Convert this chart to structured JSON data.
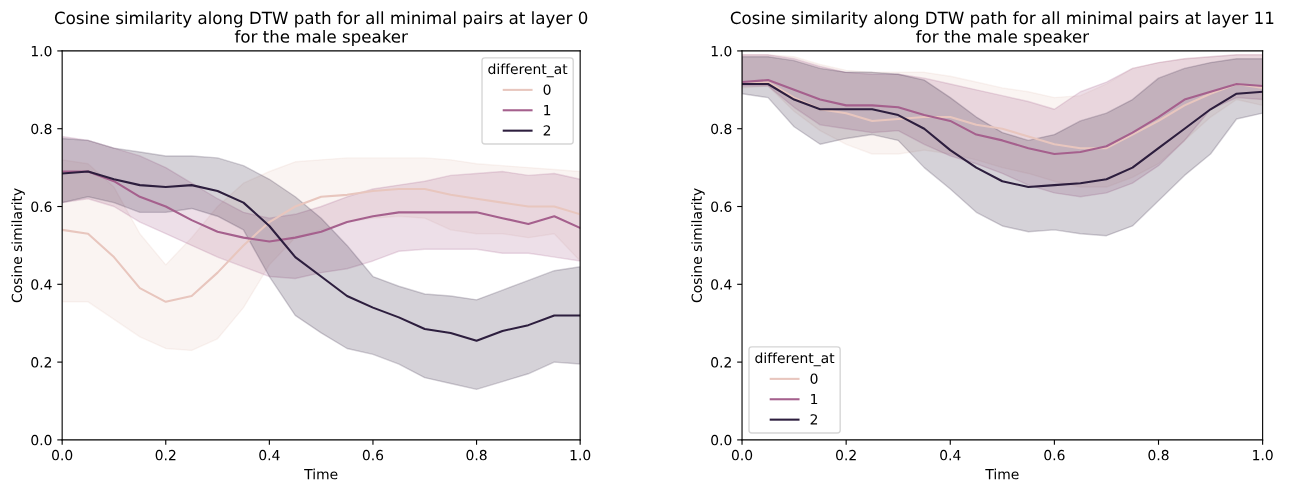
{
  "chart_data": [
    {
      "type": "line",
      "title": "Cosine similarity along DTW path for all minimal pairs at layer 0\nfor the male speaker",
      "xlabel": "Time",
      "ylabel": "Cosine similarity",
      "legend_title": "different_at",
      "legend": "top right",
      "grid": false,
      "x": [
        0,
        0.05,
        0.1,
        0.15,
        0.2,
        0.25,
        0.3,
        0.35,
        0.4,
        0.45,
        0.5,
        0.55,
        0.6,
        0.65,
        0.7,
        0.75,
        0.8,
        0.85,
        0.9,
        0.95,
        1.0
      ],
      "xlim": [
        0,
        1
      ],
      "ylim": [
        0,
        1
      ],
      "xticks": [
        {
          "value": 0,
          "label": "0.0"
        },
        {
          "value": 0.2,
          "label": "0.2"
        },
        {
          "value": 0.4,
          "label": "0.4"
        },
        {
          "value": 0.6,
          "label": "0.6"
        },
        {
          "value": 0.8,
          "label": "0.8"
        },
        {
          "value": 1,
          "label": "1.0"
        }
      ],
      "yticks": [
        {
          "value": 0,
          "label": "0.0"
        },
        {
          "value": 0.2,
          "label": "0.2"
        },
        {
          "value": 0.4,
          "label": "0.4"
        },
        {
          "value": 0.6,
          "label": "0.6"
        },
        {
          "value": 0.8,
          "label": "0.8"
        },
        {
          "value": 1,
          "label": "1.0"
        }
      ],
      "series": [
        {
          "name": "0",
          "color": "#e8c6be",
          "values": [
            0.54,
            0.53,
            0.47,
            0.39,
            0.355,
            0.37,
            0.43,
            0.5,
            0.56,
            0.6,
            0.625,
            0.63,
            0.64,
            0.645,
            0.645,
            0.63,
            0.62,
            0.61,
            0.6,
            0.6,
            0.58
          ],
          "upper": [
            0.72,
            0.71,
            0.65,
            0.53,
            0.45,
            0.52,
            0.6,
            0.66,
            0.69,
            0.715,
            0.72,
            0.725,
            0.725,
            0.725,
            0.725,
            0.72,
            0.71,
            0.705,
            0.7,
            0.695,
            0.69
          ],
          "lower": [
            0.355,
            0.355,
            0.31,
            0.265,
            0.235,
            0.23,
            0.26,
            0.34,
            0.45,
            0.52,
            0.54,
            0.56,
            0.57,
            0.575,
            0.57,
            0.54,
            0.53,
            0.53,
            0.52,
            0.53,
            0.46
          ]
        },
        {
          "name": "1",
          "color": "#a5608d",
          "values": [
            0.69,
            0.69,
            0.665,
            0.625,
            0.6,
            0.565,
            0.535,
            0.52,
            0.51,
            0.52,
            0.535,
            0.56,
            0.575,
            0.585,
            0.585,
            0.585,
            0.585,
            0.57,
            0.555,
            0.575,
            0.545
          ],
          "upper": [
            0.78,
            0.77,
            0.75,
            0.73,
            0.7,
            0.66,
            0.62,
            0.585,
            0.57,
            0.58,
            0.6,
            0.625,
            0.645,
            0.655,
            0.665,
            0.68,
            0.685,
            0.69,
            0.68,
            0.685,
            0.67
          ],
          "lower": [
            0.61,
            0.62,
            0.6,
            0.56,
            0.53,
            0.5,
            0.47,
            0.445,
            0.42,
            0.415,
            0.43,
            0.44,
            0.46,
            0.485,
            0.49,
            0.49,
            0.49,
            0.48,
            0.48,
            0.47,
            0.46
          ]
        },
        {
          "name": "2",
          "color": "#2d1e3e",
          "values": [
            0.685,
            0.69,
            0.67,
            0.655,
            0.65,
            0.655,
            0.64,
            0.61,
            0.55,
            0.47,
            0.42,
            0.37,
            0.34,
            0.315,
            0.285,
            0.275,
            0.255,
            0.28,
            0.295,
            0.32,
            0.32
          ],
          "upper": [
            0.775,
            0.77,
            0.75,
            0.74,
            0.73,
            0.73,
            0.725,
            0.705,
            0.67,
            0.625,
            0.57,
            0.5,
            0.42,
            0.395,
            0.375,
            0.37,
            0.36,
            0.385,
            0.41,
            0.435,
            0.445
          ],
          "lower": [
            0.61,
            0.625,
            0.61,
            0.585,
            0.585,
            0.595,
            0.575,
            0.54,
            0.42,
            0.32,
            0.275,
            0.235,
            0.22,
            0.195,
            0.16,
            0.145,
            0.13,
            0.15,
            0.17,
            0.2,
            0.195
          ]
        }
      ]
    },
    {
      "type": "line",
      "title": "Cosine similarity along DTW path for all minimal pairs at layer 11\nfor the male speaker",
      "xlabel": "Time",
      "ylabel": "Cosine similarity",
      "legend_title": "different_at",
      "legend": "bottom left",
      "grid": false,
      "x": [
        0,
        0.05,
        0.1,
        0.15,
        0.2,
        0.25,
        0.3,
        0.35,
        0.4,
        0.45,
        0.5,
        0.55,
        0.6,
        0.65,
        0.7,
        0.75,
        0.8,
        0.85,
        0.9,
        0.95,
        1.0
      ],
      "xlim": [
        0,
        1
      ],
      "ylim": [
        0,
        1
      ],
      "xticks": [
        {
          "value": 0,
          "label": "0.0"
        },
        {
          "value": 0.2,
          "label": "0.2"
        },
        {
          "value": 0.4,
          "label": "0.4"
        },
        {
          "value": 0.6,
          "label": "0.6"
        },
        {
          "value": 0.8,
          "label": "0.8"
        },
        {
          "value": 1,
          "label": "1.0"
        }
      ],
      "yticks": [
        {
          "value": 0,
          "label": "0.0"
        },
        {
          "value": 0.2,
          "label": "0.2"
        },
        {
          "value": 0.4,
          "label": "0.4"
        },
        {
          "value": 0.6,
          "label": "0.6"
        },
        {
          "value": 0.8,
          "label": "0.8"
        },
        {
          "value": 1,
          "label": "1.0"
        }
      ],
      "series": [
        {
          "name": "0",
          "color": "#e8c6be",
          "values": [
            0.915,
            0.92,
            0.88,
            0.85,
            0.84,
            0.82,
            0.825,
            0.83,
            0.83,
            0.81,
            0.8,
            0.78,
            0.76,
            0.75,
            0.75,
            0.785,
            0.82,
            0.86,
            0.89,
            0.915,
            0.905
          ],
          "upper": [
            0.99,
            0.99,
            0.985,
            0.965,
            0.95,
            0.945,
            0.945,
            0.945,
            0.935,
            0.92,
            0.905,
            0.895,
            0.88,
            0.885,
            0.915,
            0.955,
            0.97,
            0.98,
            0.985,
            0.99,
            0.99
          ],
          "lower": [
            0.905,
            0.91,
            0.845,
            0.795,
            0.76,
            0.735,
            0.735,
            0.745,
            0.735,
            0.72,
            0.7,
            0.685,
            0.665,
            0.65,
            0.65,
            0.675,
            0.71,
            0.77,
            0.83,
            0.875,
            0.86
          ]
        },
        {
          "name": "1",
          "color": "#a5608d",
          "values": [
            0.92,
            0.925,
            0.9,
            0.875,
            0.86,
            0.86,
            0.855,
            0.835,
            0.82,
            0.785,
            0.77,
            0.75,
            0.735,
            0.74,
            0.755,
            0.79,
            0.83,
            0.875,
            0.895,
            0.915,
            0.91
          ],
          "upper": [
            0.99,
            0.99,
            0.98,
            0.96,
            0.945,
            0.94,
            0.94,
            0.93,
            0.915,
            0.9,
            0.885,
            0.87,
            0.85,
            0.895,
            0.92,
            0.955,
            0.97,
            0.98,
            0.985,
            0.99,
            0.99
          ],
          "lower": [
            0.91,
            0.91,
            0.855,
            0.81,
            0.8,
            0.79,
            0.795,
            0.76,
            0.73,
            0.71,
            0.685,
            0.655,
            0.635,
            0.625,
            0.635,
            0.66,
            0.705,
            0.77,
            0.85,
            0.88,
            0.875
          ]
        },
        {
          "name": "2",
          "color": "#2d1e3e",
          "values": [
            0.915,
            0.915,
            0.875,
            0.85,
            0.85,
            0.85,
            0.835,
            0.8,
            0.745,
            0.7,
            0.665,
            0.65,
            0.655,
            0.66,
            0.67,
            0.7,
            0.75,
            0.8,
            0.85,
            0.89,
            0.895
          ],
          "upper": [
            0.985,
            0.985,
            0.975,
            0.955,
            0.945,
            0.945,
            0.94,
            0.925,
            0.88,
            0.83,
            0.79,
            0.77,
            0.785,
            0.82,
            0.84,
            0.875,
            0.93,
            0.955,
            0.97,
            0.98,
            0.98
          ],
          "lower": [
            0.89,
            0.88,
            0.805,
            0.76,
            0.775,
            0.785,
            0.77,
            0.7,
            0.645,
            0.585,
            0.55,
            0.535,
            0.54,
            0.53,
            0.525,
            0.55,
            0.615,
            0.68,
            0.735,
            0.825,
            0.84
          ]
        }
      ]
    }
  ]
}
